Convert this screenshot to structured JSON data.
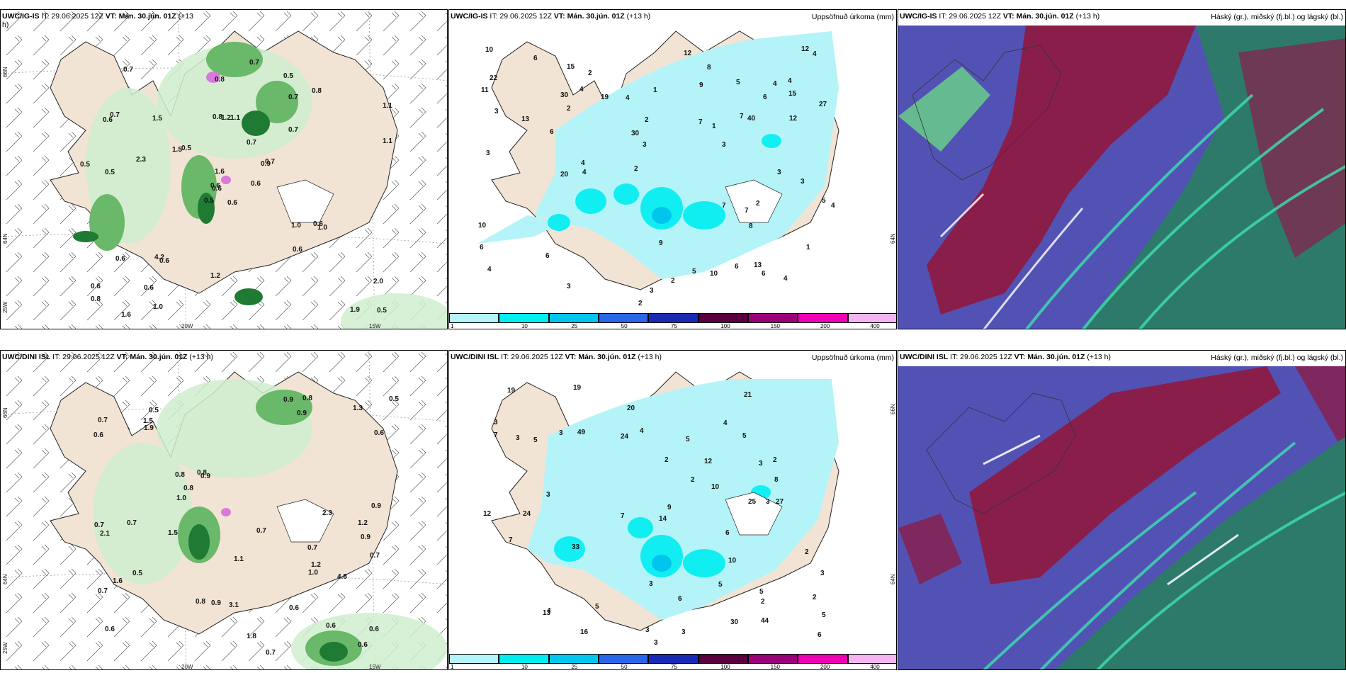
{
  "panels": {
    "ig_wind": {
      "model": "UWC/IG-IS",
      "it": "IT: 29.06.2025 12Z",
      "vt_label": "VT:",
      "vt": "Mán. 30.jún. 01Z",
      "lead": "(+13",
      "lead2": "h)",
      "lat_labels": [
        "66N",
        "64N",
        "25W"
      ],
      "lon_labels": [
        "20W",
        "15W"
      ],
      "values": [
        "0.6",
        "0.6",
        "0.6",
        "0.6",
        "0.9",
        "0.6",
        "0.5",
        "1.1",
        "0.7",
        "0.6",
        "0.7",
        "0.5",
        "0.5",
        "1.1",
        "0.5",
        "0.7",
        "1.6",
        "0.8",
        "0.7",
        "0.6",
        "0.5",
        "0.8",
        "0.6",
        "1.2",
        "0.7",
        "1.0",
        "0.7",
        "0.8",
        "0.5",
        "1.0",
        "1.1",
        "0.6",
        "1.2",
        "1.6",
        "1.5",
        "0.8",
        "4.2",
        "1.9",
        "2.0",
        "0.6",
        "0.7",
        "1.5",
        "2.3",
        "0.6",
        "1.0"
      ]
    },
    "ig_precip": {
      "model": "UWC/IG-IS",
      "it": "IT: 29.06.2025 12Z",
      "vt_label": "VT:",
      "vt": "Mán. 30.jún. 01Z",
      "lead": "(+13 h)",
      "title": "Uppsöfnuð úrkoma (mm)",
      "lat_label": "64N",
      "values": [
        "3",
        "2",
        "3",
        "3",
        "4",
        "2",
        "7",
        "4",
        "4",
        "4",
        "5",
        "4",
        "7",
        "6",
        "3",
        "3",
        "4",
        "4",
        "4",
        "5",
        "6",
        "3",
        "3",
        "9",
        "5",
        "6",
        "15",
        "8",
        "6",
        "20",
        "10",
        "10",
        "12",
        "13",
        "22",
        "15",
        "19",
        "9",
        "12",
        "6",
        "40",
        "30",
        "30",
        "13",
        "2",
        "27",
        "11",
        "3",
        "1",
        "2",
        "2",
        "1",
        "2",
        "7",
        "1",
        "2",
        "4",
        "8",
        "6",
        "7",
        "6",
        "10",
        "12",
        "4"
      ]
    },
    "ig_cloud": {
      "model": "UWC/IG-IS",
      "it": "IT: 29.06.2025 12Z",
      "vt_label": "VT:",
      "vt": "Mán. 30.jún. 01Z",
      "lead": "(+13 h)",
      "title": "Háský (gr.), miðský (fj.bl.) og lágský (bl.)"
    },
    "dini_wind": {
      "model": "UWC/DINI ISL",
      "it": "IT: 29.06.2025 12Z",
      "vt_label": "VT:",
      "vt": "Mán. 30.jún. 01Z",
      "lead": "(+13 h)",
      "lat_labels": [
        "66N",
        "64N",
        "25W"
      ],
      "lon_labels": [
        "20W",
        "15W"
      ],
      "values": [
        "0.7",
        "0.9",
        "0.6",
        "0.5",
        "0.9",
        "0.6",
        "0.7",
        "0.9",
        "0.8",
        "0.7",
        "0.6",
        "0.7",
        "0.7",
        "0.6",
        "0.8",
        "0.9",
        "1.1",
        "0.7",
        "0.8",
        "0.5",
        "0.5",
        "1.3",
        "1.0",
        "0.7",
        "0.9",
        "1.5",
        "1.2",
        "2.1",
        "1.9",
        "2.3",
        "1.8",
        "0.6",
        "0.8",
        "1.5",
        "1.2",
        "4.8",
        "1.0",
        "0.7",
        "3.1",
        "1.6",
        "0.6",
        "0.8",
        "0.6",
        "0.9"
      ]
    },
    "dini_precip": {
      "model": "UWC/DINI ISL",
      "it": "IT: 29.06.2025 12Z",
      "vt_label": "VT:",
      "vt": "Mán. 30.jún. 01Z",
      "lead": "(+13 h)",
      "title": "Uppsöfnuð úrkoma (mm)",
      "lat_labels": [
        "66N",
        "64N"
      ],
      "values": [
        "2",
        "2",
        "3",
        "2",
        "3",
        "4",
        "3",
        "4",
        "3",
        "7",
        "5",
        "5",
        "6",
        "3",
        "5",
        "5",
        "3",
        "5",
        "6",
        "10",
        "7",
        "3",
        "10",
        "7",
        "8",
        "5",
        "19",
        "6",
        "9",
        "20",
        "13",
        "24",
        "21",
        "27",
        "33",
        "24",
        "19",
        "49",
        "30",
        "44",
        "14",
        "12",
        "25",
        "16",
        "12",
        "3",
        "2",
        "2",
        "5",
        "3",
        "4",
        "2",
        "3",
        "3"
      ]
    },
    "dini_cloud": {
      "model": "UWC/DINI ISL",
      "it": "IT: 29.06.2025 12Z",
      "vt_label": "VT:",
      "vt": "Mán. 30.jún. 01Z",
      "lead": "(+13 h)",
      "title": "Háský (gr.), miðský (fj.bl.) og lágský (bl.)"
    }
  },
  "colorbar": {
    "ticks": [
      "1",
      "10",
      "25",
      "50",
      "75",
      "100",
      "150",
      "200",
      "400"
    ],
    "colors": [
      "#b4f4f8",
      "#00eef2",
      "#00c6ee",
      "#2a66e8",
      "#1a2ab4",
      "#5a003e",
      "#9a0078",
      "#f000b4",
      "#f4b4f0"
    ]
  },
  "colors": {
    "land": "#f2e4d4",
    "wind_green_light": "#cfeecf",
    "wind_green_dark": "#1f7a33",
    "precip_cyan": "#b4f4f8",
    "cloud_blue": "#5252b4",
    "cloud_red": "#8a1e4a",
    "cloud_teal": "#2d7a6a"
  }
}
